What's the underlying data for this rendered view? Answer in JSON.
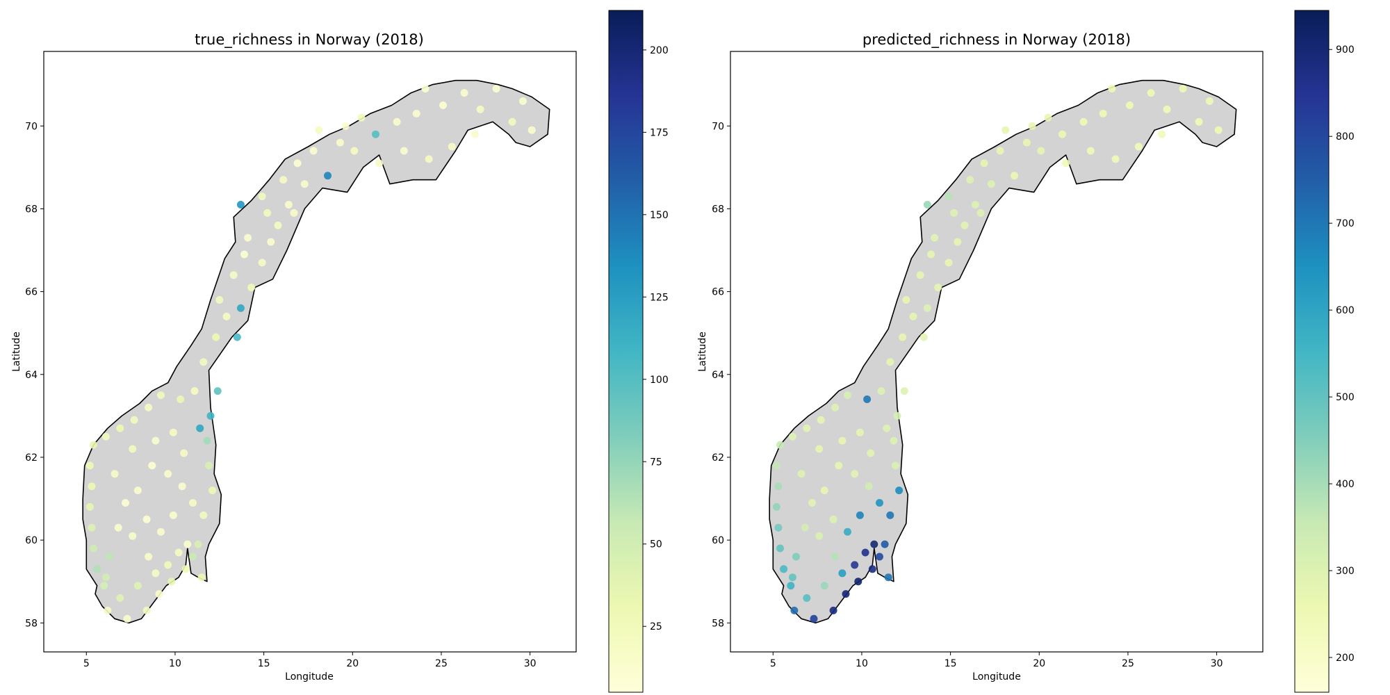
{
  "figure": {
    "panels": [
      {
        "title": "true_richness in Norway (2018)",
        "xlabel": "Longitude",
        "ylabel": "Latitude",
        "xticks": [
          "5",
          "10",
          "15",
          "20",
          "25",
          "30"
        ],
        "yticks": [
          "58",
          "60",
          "62",
          "64",
          "66",
          "68",
          "70"
        ],
        "colorbar_ticks": [
          "25",
          "50",
          "75",
          "100",
          "125",
          "150",
          "175",
          "200"
        ]
      },
      {
        "title": "predicted_richness in Norway (2018)",
        "xlabel": "Longitude",
        "ylabel": "",
        "xticks": [
          "5",
          "10",
          "15",
          "20",
          "25",
          "30"
        ],
        "yticks": [
          "58",
          "60",
          "62",
          "64",
          "66",
          "68",
          "70"
        ],
        "colorbar_ticks": [
          "200",
          "300",
          "400",
          "500",
          "600",
          "700",
          "800",
          "900"
        ]
      }
    ]
  },
  "chart_data": [
    {
      "type": "scatter",
      "title": "true_richness in Norway (2018)",
      "xlabel": "Longitude",
      "ylabel": "Latitude",
      "xlim": [
        2.6,
        32.6
      ],
      "ylim": [
        57.3,
        71.8
      ],
      "x_ticks": [
        5,
        10,
        15,
        20,
        25,
        30
      ],
      "y_ticks": [
        58,
        60,
        62,
        64,
        66,
        68,
        70
      ],
      "grid": false,
      "basemap": "Norway outline, land fill #d3d3d3, black coastline",
      "colormap": "YlGnBu",
      "colorbar_range": [
        5,
        212
      ],
      "colorbar_ticks": [
        25,
        50,
        75,
        100,
        125,
        150,
        175,
        200
      ],
      "point_color_rule": "richness mostly 5-60 everywhere; isolated points up to ~140",
      "points": [
        [
          6.2,
          58.3,
          18
        ],
        [
          7.3,
          58.1,
          12
        ],
        [
          8.4,
          58.3,
          22
        ],
        [
          9.1,
          58.7,
          15
        ],
        [
          9.8,
          59.0,
          35
        ],
        [
          10.6,
          59.3,
          28
        ],
        [
          11.0,
          59.6,
          55
        ],
        [
          11.3,
          59.9,
          45
        ],
        [
          11.5,
          59.1,
          30
        ],
        [
          10.2,
          59.7,
          20
        ],
        [
          10.7,
          59.9,
          14
        ],
        [
          9.6,
          59.4,
          25
        ],
        [
          8.9,
          59.2,
          18
        ],
        [
          6.9,
          58.6,
          40
        ],
        [
          6.0,
          58.9,
          48
        ],
        [
          5.6,
          59.3,
          65
        ],
        [
          5.4,
          59.8,
          52
        ],
        [
          5.3,
          60.3,
          42
        ],
        [
          5.2,
          60.8,
          35
        ],
        [
          5.3,
          61.3,
          30
        ],
        [
          5.2,
          61.8,
          28
        ],
        [
          5.4,
          62.3,
          36
        ],
        [
          6.1,
          62.5,
          22
        ],
        [
          6.9,
          62.7,
          30
        ],
        [
          7.7,
          62.9,
          24
        ],
        [
          8.5,
          63.2,
          18
        ],
        [
          9.2,
          63.5,
          26
        ],
        [
          10.3,
          63.4,
          32
        ],
        [
          11.1,
          63.6,
          20
        ],
        [
          12.0,
          63.0,
          110
        ],
        [
          11.8,
          62.4,
          70
        ],
        [
          11.9,
          61.8,
          45
        ],
        [
          12.1,
          61.2,
          30
        ],
        [
          11.6,
          60.6,
          22
        ],
        [
          11.0,
          60.9,
          18
        ],
        [
          10.4,
          61.3,
          12
        ],
        [
          9.6,
          61.6,
          15
        ],
        [
          8.7,
          61.8,
          10
        ],
        [
          7.9,
          61.2,
          14
        ],
        [
          7.2,
          60.9,
          10
        ],
        [
          6.6,
          61.6,
          16
        ],
        [
          6.8,
          60.3,
          12
        ],
        [
          7.6,
          60.1,
          15
        ],
        [
          8.4,
          60.5,
          10
        ],
        [
          9.2,
          60.2,
          12
        ],
        [
          9.9,
          60.6,
          14
        ],
        [
          10.5,
          62.1,
          18
        ],
        [
          9.9,
          62.6,
          20
        ],
        [
          8.9,
          62.4,
          12
        ],
        [
          7.6,
          62.2,
          22
        ],
        [
          6.3,
          59.6,
          60
        ],
        [
          6.1,
          59.1,
          50
        ],
        [
          7.9,
          58.9,
          40
        ],
        [
          8.5,
          59.6,
          15
        ],
        [
          11.4,
          62.7,
          120
        ],
        [
          12.4,
          63.6,
          95
        ],
        [
          11.6,
          64.3,
          22
        ],
        [
          12.3,
          64.9,
          30
        ],
        [
          12.9,
          65.4,
          20
        ],
        [
          13.5,
          64.9,
          105
        ],
        [
          13.7,
          65.6,
          120
        ],
        [
          14.3,
          66.1,
          25
        ],
        [
          14.9,
          66.7,
          18
        ],
        [
          15.4,
          67.2,
          12
        ],
        [
          15.8,
          67.6,
          20
        ],
        [
          16.4,
          68.1,
          15
        ],
        [
          13.7,
          68.1,
          130
        ],
        [
          14.9,
          68.3,
          22
        ],
        [
          16.1,
          68.7,
          18
        ],
        [
          16.9,
          69.1,
          10
        ],
        [
          17.8,
          69.4,
          12
        ],
        [
          18.6,
          68.8,
          140
        ],
        [
          19.3,
          69.6,
          15
        ],
        [
          20.1,
          69.4,
          20
        ],
        [
          21.3,
          69.8,
          100
        ],
        [
          22.5,
          70.1,
          14
        ],
        [
          23.6,
          70.3,
          12
        ],
        [
          24.3,
          69.2,
          18
        ],
        [
          25.1,
          70.5,
          10
        ],
        [
          25.6,
          69.5,
          16
        ],
        [
          26.3,
          70.8,
          12
        ],
        [
          27.2,
          70.4,
          20
        ],
        [
          28.1,
          70.9,
          10
        ],
        [
          29.0,
          70.1,
          22
        ],
        [
          30.1,
          69.9,
          14
        ],
        [
          21.5,
          69.1,
          18
        ],
        [
          22.9,
          69.4,
          12
        ],
        [
          20.5,
          70.2,
          25
        ],
        [
          18.1,
          69.9,
          20
        ],
        [
          17.3,
          68.6,
          15
        ],
        [
          15.2,
          67.9,
          24
        ],
        [
          14.1,
          67.3,
          12
        ],
        [
          13.3,
          66.4,
          18
        ],
        [
          12.5,
          65.8,
          22
        ],
        [
          13.9,
          66.9,
          10
        ],
        [
          16.7,
          67.9,
          16
        ],
        [
          19.6,
          70.0,
          12
        ],
        [
          24.1,
          70.9,
          10
        ],
        [
          26.9,
          69.8,
          15
        ],
        [
          29.6,
          70.6,
          12
        ]
      ]
    },
    {
      "type": "scatter",
      "title": "predicted_richness in Norway (2018)",
      "xlabel": "Longitude",
      "ylabel": "Latitude",
      "xlim": [
        2.6,
        32.6
      ],
      "ylim": [
        57.3,
        71.8
      ],
      "x_ticks": [
        5,
        10,
        15,
        20,
        25,
        30
      ],
      "y_ticks": [
        58,
        60,
        62,
        64,
        66,
        68,
        70
      ],
      "grid": false,
      "basemap": "Norway outline, land fill #d3d3d3, black coastline",
      "colormap": "YlGnBu",
      "colorbar_range": [
        160,
        945
      ],
      "colorbar_ticks": [
        200,
        300,
        400,
        500,
        600,
        700,
        800,
        900
      ],
      "point_color_rule": "~250-350 in north and interior; ~450-550 along south-west coast; ~650-940 in the south-east (Oslofjord) region",
      "points": [
        [
          6.2,
          58.3,
          720
        ],
        [
          7.3,
          58.1,
          820
        ],
        [
          8.4,
          58.3,
          880
        ],
        [
          9.1,
          58.7,
          900
        ],
        [
          9.8,
          59.0,
          910
        ],
        [
          10.6,
          59.3,
          880
        ],
        [
          11.0,
          59.6,
          800
        ],
        [
          11.3,
          59.9,
          760
        ],
        [
          11.5,
          59.1,
          700
        ],
        [
          10.2,
          59.7,
          860
        ],
        [
          10.7,
          59.9,
          900
        ],
        [
          9.6,
          59.4,
          840
        ],
        [
          8.9,
          59.2,
          620
        ],
        [
          6.9,
          58.6,
          520
        ],
        [
          6.0,
          58.9,
          560
        ],
        [
          5.6,
          59.3,
          540
        ],
        [
          5.4,
          59.8,
          500
        ],
        [
          5.3,
          60.3,
          470
        ],
        [
          5.2,
          60.8,
          430
        ],
        [
          5.3,
          61.3,
          400
        ],
        [
          5.2,
          61.8,
          360
        ],
        [
          5.4,
          62.3,
          350
        ],
        [
          6.1,
          62.5,
          300
        ],
        [
          6.9,
          62.7,
          290
        ],
        [
          7.7,
          62.9,
          280
        ],
        [
          8.5,
          63.2,
          300
        ],
        [
          9.2,
          63.5,
          320
        ],
        [
          10.3,
          63.4,
          700
        ],
        [
          11.1,
          63.6,
          300
        ],
        [
          12.0,
          63.0,
          320
        ],
        [
          11.8,
          62.4,
          300
        ],
        [
          11.9,
          61.8,
          310
        ],
        [
          12.1,
          61.2,
          660
        ],
        [
          11.6,
          60.6,
          700
        ],
        [
          11.0,
          60.9,
          640
        ],
        [
          10.4,
          61.3,
          330
        ],
        [
          9.6,
          61.6,
          290
        ],
        [
          8.7,
          61.8,
          280
        ],
        [
          7.9,
          61.2,
          270
        ],
        [
          7.2,
          60.9,
          290
        ],
        [
          6.6,
          61.6,
          300
        ],
        [
          6.8,
          60.3,
          330
        ],
        [
          7.6,
          60.1,
          310
        ],
        [
          8.4,
          60.5,
          300
        ],
        [
          9.2,
          60.2,
          580
        ],
        [
          9.9,
          60.6,
          680
        ],
        [
          10.5,
          62.1,
          290
        ],
        [
          9.9,
          62.6,
          280
        ],
        [
          8.9,
          62.4,
          270
        ],
        [
          7.6,
          62.2,
          280
        ],
        [
          6.3,
          59.6,
          460
        ],
        [
          6.1,
          59.1,
          500
        ],
        [
          7.9,
          58.9,
          420
        ],
        [
          8.5,
          59.6,
          380
        ],
        [
          11.4,
          62.7,
          300
        ],
        [
          12.4,
          63.6,
          300
        ],
        [
          11.6,
          64.3,
          280
        ],
        [
          12.3,
          64.9,
          270
        ],
        [
          12.9,
          65.4,
          280
        ],
        [
          13.5,
          64.9,
          290
        ],
        [
          13.7,
          65.6,
          300
        ],
        [
          14.3,
          66.1,
          280
        ],
        [
          14.9,
          66.7,
          270
        ],
        [
          15.4,
          67.2,
          280
        ],
        [
          15.8,
          67.6,
          290
        ],
        [
          16.4,
          68.1,
          300
        ],
        [
          13.7,
          68.1,
          420
        ],
        [
          14.9,
          68.3,
          380
        ],
        [
          16.1,
          68.7,
          300
        ],
        [
          16.9,
          69.1,
          280
        ],
        [
          17.8,
          69.4,
          270
        ],
        [
          18.6,
          68.8,
          260
        ],
        [
          19.3,
          69.6,
          270
        ],
        [
          20.1,
          69.4,
          280
        ],
        [
          21.3,
          69.8,
          260
        ],
        [
          22.5,
          70.1,
          250
        ],
        [
          23.6,
          70.3,
          250
        ],
        [
          24.3,
          69.2,
          240
        ],
        [
          25.1,
          70.5,
          250
        ],
        [
          25.6,
          69.5,
          240
        ],
        [
          26.3,
          70.8,
          250
        ],
        [
          27.2,
          70.4,
          240
        ],
        [
          28.1,
          70.9,
          250
        ],
        [
          29.0,
          70.1,
          240
        ],
        [
          30.1,
          69.9,
          250
        ],
        [
          21.5,
          69.1,
          250
        ],
        [
          22.9,
          69.4,
          240
        ],
        [
          20.5,
          70.2,
          270
        ],
        [
          18.1,
          69.9,
          280
        ],
        [
          17.3,
          68.6,
          300
        ],
        [
          15.2,
          67.9,
          300
        ],
        [
          14.1,
          67.3,
          290
        ],
        [
          13.3,
          66.4,
          280
        ],
        [
          12.5,
          65.8,
          270
        ],
        [
          13.9,
          66.9,
          280
        ],
        [
          16.7,
          67.9,
          300
        ],
        [
          19.6,
          70.0,
          270
        ],
        [
          24.1,
          70.9,
          250
        ],
        [
          26.9,
          69.8,
          240
        ],
        [
          29.6,
          70.6,
          250
        ]
      ]
    }
  ]
}
